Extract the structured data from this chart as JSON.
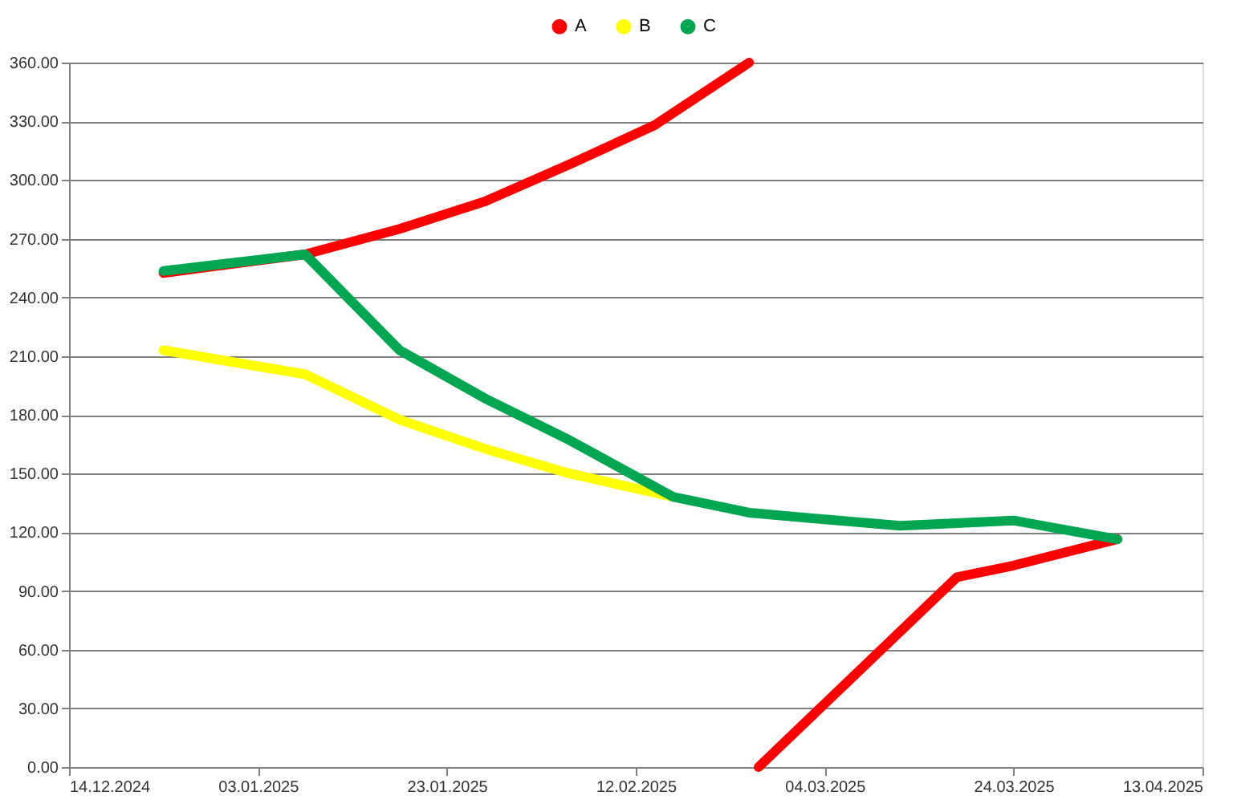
{
  "chart_data": {
    "type": "line",
    "legend": "top",
    "grid": "y",
    "line_style": "solid",
    "series": [
      {
        "name": "A",
        "color": "#ff0000",
        "x": [
          "2024-12-24",
          "2025-01-08",
          "2025-01-18",
          "2025-01-27",
          "2025-02-05",
          "2025-02-14",
          "2025-02-24",
          null,
          "2025-02-25",
          "2025-03-18",
          "2025-03-24",
          "2025-04-04"
        ],
        "values": [
          252.5,
          262,
          275,
          289,
          308,
          328,
          360,
          null,
          0,
          97,
          103,
          116.5
        ]
      },
      {
        "name": "B",
        "color": "#ffff00",
        "x": [
          "2024-12-24",
          "2025-01-08",
          "2025-01-18",
          "2025-01-27",
          "2025-02-05",
          "2025-02-16"
        ],
        "values": [
          213,
          200.7,
          177.5,
          162.7,
          150,
          138
        ]
      },
      {
        "name": "C",
        "color": "#00a651",
        "x": [
          "2024-12-24",
          "2025-01-08",
          "2025-01-18",
          "2025-01-27",
          "2025-02-05",
          "2025-02-16",
          "2025-02-24",
          "2025-03-04",
          "2025-03-12",
          "2025-03-24",
          "2025-04-04"
        ],
        "values": [
          253.5,
          262,
          213,
          188.5,
          167,
          138,
          130,
          126.6,
          123.3,
          126,
          116.4
        ]
      }
    ],
    "xlim": [
      "2024-12-14",
      "2025-04-13"
    ],
    "xticks": [
      {
        "value": "2024-12-14",
        "label": "14.12.2024"
      },
      {
        "value": "2025-01-03",
        "label": "03.01.2025"
      },
      {
        "value": "2025-01-23",
        "label": "23.01.2025"
      },
      {
        "value": "2025-02-12",
        "label": "12.02.2025"
      },
      {
        "value": "2025-03-04",
        "label": "04.03.2025"
      },
      {
        "value": "2025-03-24",
        "label": "24.03.2025"
      },
      {
        "value": "2025-04-13",
        "label": "13.04.2025"
      }
    ],
    "ylim": [
      0,
      360
    ],
    "yticks": [
      {
        "value": 0,
        "label": "0.00"
      },
      {
        "value": 30,
        "label": "30.00"
      },
      {
        "value": 60,
        "label": "60.00"
      },
      {
        "value": 90,
        "label": "90.00"
      },
      {
        "value": 120,
        "label": "120.00"
      },
      {
        "value": 150,
        "label": "150.00"
      },
      {
        "value": 180,
        "label": "180.00"
      },
      {
        "value": 210,
        "label": "210.00"
      },
      {
        "value": 240,
        "label": "240.00"
      },
      {
        "value": 270,
        "label": "270.00"
      },
      {
        "value": 300,
        "label": "300.00"
      },
      {
        "value": 330,
        "label": "330.00"
      },
      {
        "value": 360,
        "label": "360.00"
      }
    ]
  }
}
